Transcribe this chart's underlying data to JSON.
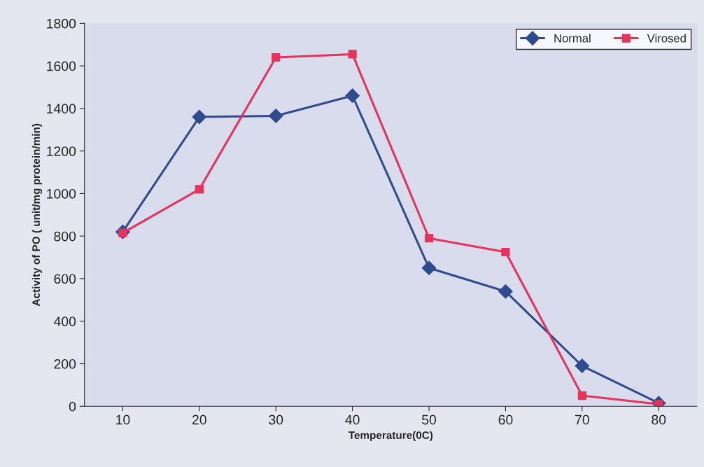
{
  "chart_data": {
    "type": "line",
    "xlabel": "Temperature(0C)",
    "ylabel": "Activity of PO ( unit/mg protein/min)",
    "categories": [
      "10",
      "20",
      "30",
      "40",
      "50",
      "60",
      "70",
      "80"
    ],
    "series": [
      {
        "name": "Normal",
        "color": "#2f4b8f",
        "marker": "diamond",
        "values": [
          820,
          1360,
          1365,
          1460,
          650,
          540,
          190,
          15
        ]
      },
      {
        "name": "Virosed",
        "color": "#e6335c",
        "marker": "square",
        "values": [
          815,
          1020,
          1640,
          1655,
          790,
          725,
          50,
          10
        ]
      }
    ],
    "ylim": [
      0,
      1800
    ],
    "yticks": [
      0,
      200,
      400,
      600,
      800,
      1000,
      1200,
      1400,
      1600,
      1800
    ],
    "grid": false,
    "legend": "top right",
    "line_style": "solid"
  }
}
